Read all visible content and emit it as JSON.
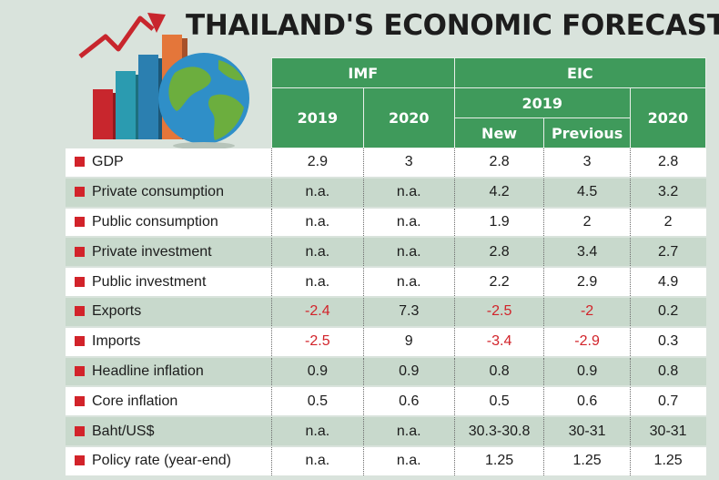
{
  "title": "THAILAND'S ECONOMIC FORECASTS",
  "colors": {
    "header_green": "#3f9a5b",
    "bullet_red": "#d2232a",
    "row_alt": "#c8d9cc",
    "negative": "#d2232a"
  },
  "headers": {
    "imf": "IMF",
    "eic": "EIC",
    "y2019": "2019",
    "y2020": "2020",
    "new": "New",
    "previous": "Previous"
  },
  "rows": [
    {
      "label": "GDP",
      "v": [
        "2.9",
        "3",
        "2.8",
        "3",
        "2.8"
      ]
    },
    {
      "label": "Private consumption",
      "v": [
        "n.a.",
        "n.a.",
        "4.2",
        "4.5",
        "3.2"
      ]
    },
    {
      "label": "Public consumption",
      "v": [
        "n.a.",
        "n.a.",
        "1.9",
        "2",
        "2"
      ]
    },
    {
      "label": "Private investment",
      "v": [
        "n.a.",
        "n.a.",
        "2.8",
        "3.4",
        "2.7"
      ]
    },
    {
      "label": "Public investment",
      "v": [
        "n.a.",
        "n.a.",
        "2.2",
        "2.9",
        "4.9"
      ]
    },
    {
      "label": "Exports",
      "v": [
        "-2.4",
        "7.3",
        "-2.5",
        "-2",
        "0.2"
      ]
    },
    {
      "label": "Imports",
      "v": [
        "-2.5",
        "9",
        "-3.4",
        "-2.9",
        "0.3"
      ]
    },
    {
      "label": "Headline inflation",
      "v": [
        "0.9",
        "0.9",
        "0.8",
        "0.9",
        "0.8"
      ]
    },
    {
      "label": "Core inflation",
      "v": [
        "0.5",
        "0.6",
        "0.5",
        "0.6",
        "0.7"
      ]
    },
    {
      "label": "Baht/US$",
      "v": [
        "n.a.",
        "n.a.",
        "30.3-30.8",
        "30-31",
        "30-31"
      ]
    },
    {
      "label": "Policy rate (year-end)",
      "v": [
        "n.a.",
        "n.a.",
        "1.25",
        "1.25",
        "1.25"
      ]
    }
  ]
}
